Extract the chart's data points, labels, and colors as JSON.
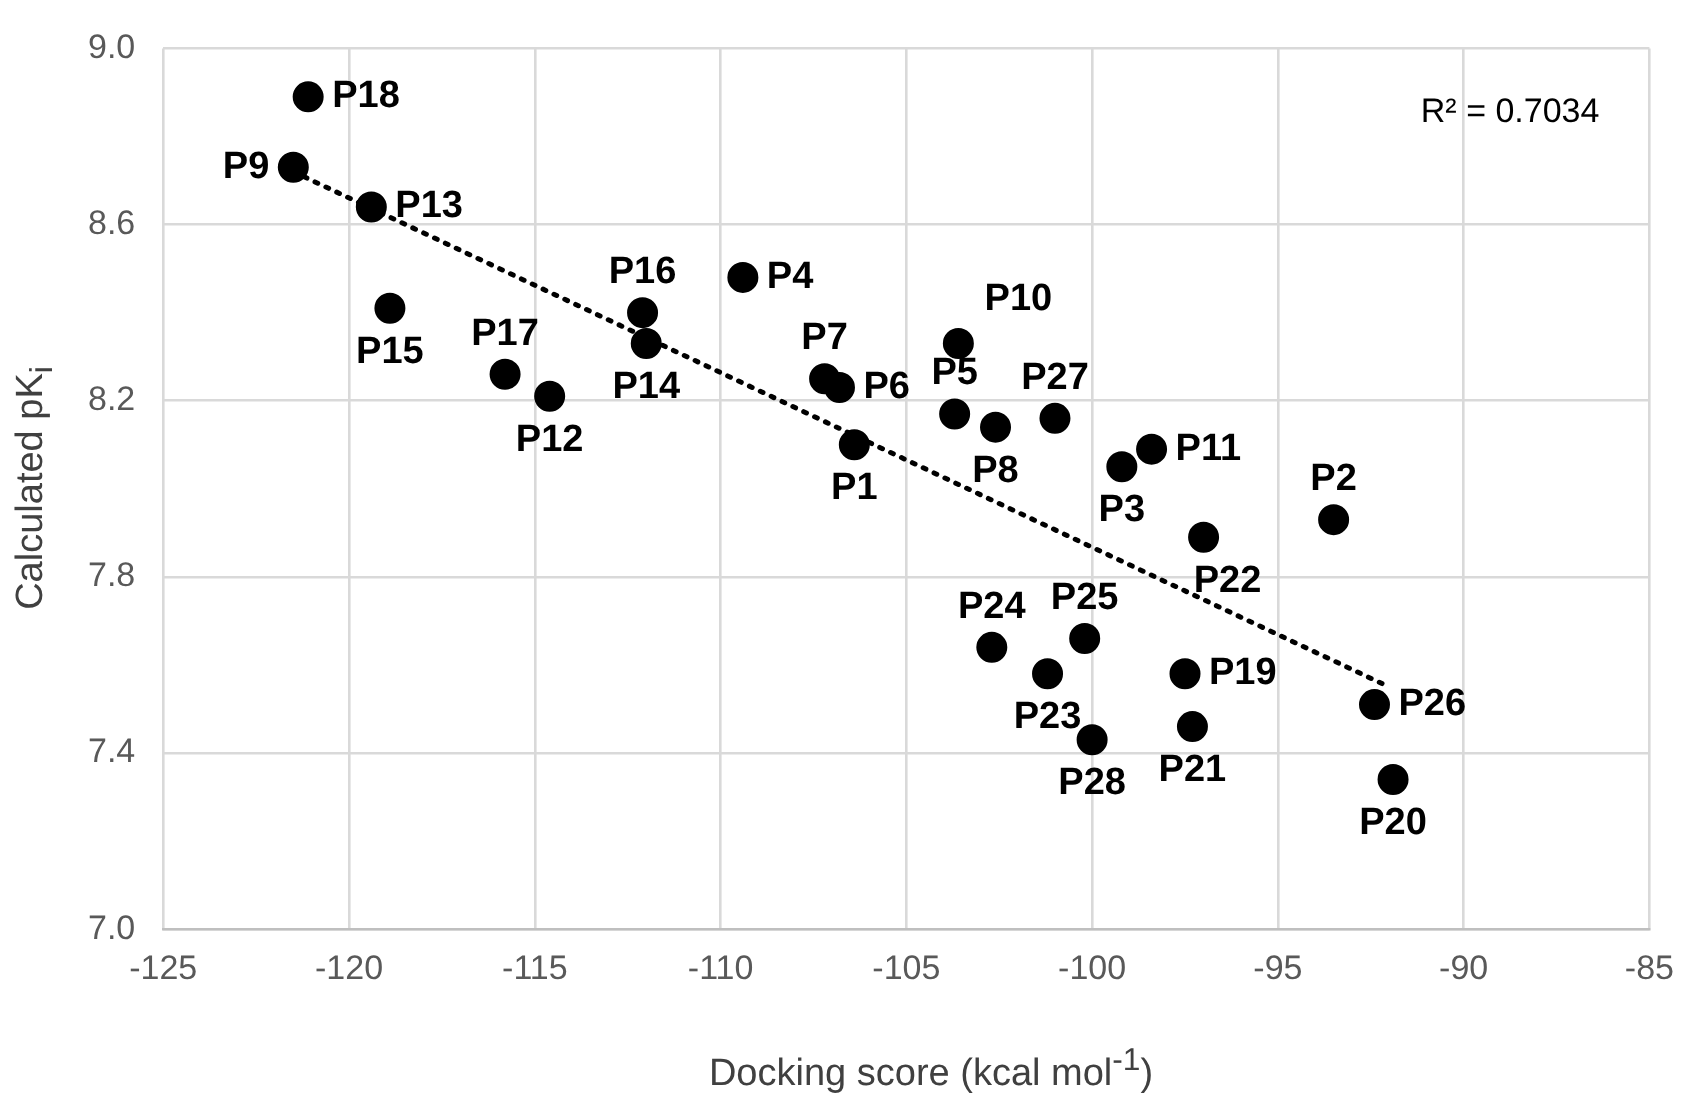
{
  "chart_data": {
    "type": "scatter",
    "xlabel": "Docking score (kcal mol$^{-1}$)",
    "ylabel": "Calculated pK$_{i}$",
    "xlim": [
      -125,
      -85
    ],
    "xticks": [
      -125,
      -120,
      -115,
      -110,
      -105,
      -100,
      -95,
      -90,
      -85
    ],
    "ylim": [
      7.0,
      9.0
    ],
    "yticks": [
      {
        "value": 7.0,
        "label": "7.0"
      },
      7.4,
      7.8,
      8.2,
      8.6,
      {
        "value": 9.0,
        "label": "9.0"
      }
    ],
    "grid": true,
    "legend": false,
    "annotations": [
      "R² = 0.7034"
    ],
    "series": [
      {
        "type": "scatter",
        "color": "#000000",
        "marker": "circle",
        "x": [
          -106.4,
          -93.5,
          -99.2,
          -109.4,
          -103.7,
          -106.8,
          -107.2,
          -102.6,
          -121.5,
          -103.6,
          -98.4,
          -114.6,
          -119.4,
          -112.0,
          -118.9,
          -112.1,
          -115.8,
          -121.1,
          -97.5,
          -91.9,
          -97.3,
          -97.0,
          -101.2,
          -102.7,
          -100.2,
          -92.4,
          -101.0,
          -100.0
        ],
        "values": [
          8.1,
          7.93,
          8.05,
          8.48,
          8.17,
          8.23,
          8.25,
          8.14,
          8.73,
          8.33,
          8.09,
          8.21,
          8.64,
          8.33,
          8.41,
          8.4,
          8.26,
          8.89,
          7.58,
          7.34,
          7.46,
          7.89,
          7.58,
          7.64,
          7.66,
          7.51,
          8.16,
          7.43
        ],
        "value_labels": [
          "P1",
          "P2",
          "P3",
          "P4",
          "P5",
          "P6",
          "P7",
          "P8",
          "P9",
          "P10",
          "P11",
          "P12",
          "P13",
          "P14",
          "P15",
          "P16",
          "P17",
          "P18",
          "P19",
          "P20",
          "P21",
          "P22",
          "P23",
          "P24",
          "P25",
          "P26",
          "P27",
          "P28"
        ]
      },
      {
        "type": "line",
        "color": "#000000",
        "marker": "none",
        "line_style": "dotted",
        "x": [
          -121.5,
          -92.0
        ],
        "values": [
          8.72,
          7.55
        ]
      }
    ]
  }
}
